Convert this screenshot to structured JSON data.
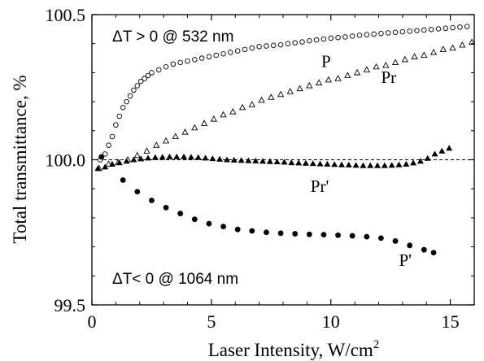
{
  "chart_data": {
    "type": "scatter",
    "xlabel": "Laser Intensity, W/cm",
    "xlabel_sup": "2",
    "ylabel": "Total transmittance, %",
    "xlim": [
      0,
      16
    ],
    "ylim": [
      99.5,
      100.5
    ],
    "x_ticks": [
      0,
      5,
      10,
      15
    ],
    "x_tick_labels": [
      "0",
      "5",
      "10",
      "15"
    ],
    "y_ticks": [
      99.5,
      100.0,
      100.5
    ],
    "y_tick_labels": [
      "99.5",
      "100.0",
      "100.5"
    ],
    "reference_line": 100.0,
    "annotations": [
      "ΔT > 0 @ 532 nm",
      "ΔT< 0 @ 1064 nm"
    ],
    "series": [
      {
        "name": "P",
        "marker": "open-circle",
        "points": [
          [
            0.35,
            100.0
          ],
          [
            0.55,
            100.02
          ],
          [
            0.7,
            100.05
          ],
          [
            0.85,
            100.08
          ],
          [
            1.0,
            100.12
          ],
          [
            1.15,
            100.15
          ],
          [
            1.3,
            100.18
          ],
          [
            1.45,
            100.2
          ],
          [
            1.6,
            100.22
          ],
          [
            1.75,
            100.24
          ],
          [
            1.9,
            100.255
          ],
          [
            2.05,
            100.27
          ],
          [
            2.2,
            100.28
          ],
          [
            2.35,
            100.29
          ],
          [
            2.5,
            100.3
          ],
          [
            2.8,
            100.31
          ],
          [
            3.1,
            100.32
          ],
          [
            3.4,
            100.33
          ],
          [
            3.7,
            100.335
          ],
          [
            4.0,
            100.34
          ],
          [
            4.3,
            100.345
          ],
          [
            4.6,
            100.35
          ],
          [
            4.9,
            100.355
          ],
          [
            5.2,
            100.36
          ],
          [
            5.5,
            100.365
          ],
          [
            5.8,
            100.37
          ],
          [
            6.1,
            100.375
          ],
          [
            6.4,
            100.38
          ],
          [
            6.7,
            100.385
          ],
          [
            7.0,
            100.39
          ],
          [
            7.3,
            100.392
          ],
          [
            7.6,
            100.394
          ],
          [
            7.9,
            100.396
          ],
          [
            8.2,
            100.4
          ],
          [
            8.5,
            100.403
          ],
          [
            8.8,
            100.406
          ],
          [
            9.1,
            100.41
          ],
          [
            9.4,
            100.413
          ],
          [
            9.7,
            100.416
          ],
          [
            10.0,
            100.419
          ],
          [
            10.3,
            100.421
          ],
          [
            10.6,
            100.423
          ],
          [
            10.9,
            100.426
          ],
          [
            11.2,
            100.429
          ],
          [
            11.5,
            100.431
          ],
          [
            11.8,
            100.433
          ],
          [
            12.1,
            100.435
          ],
          [
            12.4,
            100.437
          ],
          [
            12.7,
            100.439
          ],
          [
            13.0,
            100.441
          ],
          [
            13.3,
            100.443
          ],
          [
            13.6,
            100.445
          ],
          [
            13.9,
            100.447
          ],
          [
            14.2,
            100.449
          ],
          [
            14.5,
            100.451
          ],
          [
            14.8,
            100.453
          ],
          [
            15.1,
            100.455
          ],
          [
            15.4,
            100.457
          ],
          [
            15.7,
            100.459
          ]
        ]
      },
      {
        "name": "Pr",
        "marker": "open-triangle",
        "points": [
          [
            0.3,
            99.97
          ],
          [
            0.7,
            99.985
          ],
          [
            1.1,
            99.99
          ],
          [
            1.5,
            100.0
          ],
          [
            1.9,
            100.015
          ],
          [
            2.3,
            100.03
          ],
          [
            2.7,
            100.05
          ],
          [
            3.1,
            100.065
          ],
          [
            3.5,
            100.08
          ],
          [
            3.9,
            100.095
          ],
          [
            4.3,
            100.11
          ],
          [
            4.7,
            100.125
          ],
          [
            5.1,
            100.14
          ],
          [
            5.5,
            100.155
          ],
          [
            5.9,
            100.165
          ],
          [
            6.3,
            100.18
          ],
          [
            6.7,
            100.19
          ],
          [
            7.1,
            100.205
          ],
          [
            7.5,
            100.215
          ],
          [
            7.9,
            100.225
          ],
          [
            8.3,
            100.235
          ],
          [
            8.7,
            100.245
          ],
          [
            9.1,
            100.255
          ],
          [
            9.5,
            100.265
          ],
          [
            9.9,
            100.275
          ],
          [
            10.3,
            100.28
          ],
          [
            10.7,
            100.29
          ],
          [
            11.1,
            100.3
          ],
          [
            11.5,
            100.31
          ],
          [
            11.9,
            100.32
          ],
          [
            12.3,
            100.325
          ],
          [
            12.7,
            100.335
          ],
          [
            13.1,
            100.345
          ],
          [
            13.5,
            100.355
          ],
          [
            13.9,
            100.36
          ],
          [
            14.3,
            100.37
          ],
          [
            14.7,
            100.38
          ],
          [
            15.1,
            100.385
          ],
          [
            15.5,
            100.395
          ],
          [
            15.9,
            100.405
          ]
        ]
      },
      {
        "name": "Pr'",
        "marker": "filled-triangle",
        "points": [
          [
            0.25,
            99.97
          ],
          [
            0.55,
            99.975
          ],
          [
            0.85,
            99.985
          ],
          [
            1.15,
            99.99
          ],
          [
            1.45,
            99.995
          ],
          [
            1.75,
            100.0
          ],
          [
            2.05,
            100.003
          ],
          [
            2.35,
            100.006
          ],
          [
            2.65,
            100.008
          ],
          [
            2.95,
            100.009
          ],
          [
            3.25,
            100.01
          ],
          [
            3.55,
            100.01
          ],
          [
            3.85,
            100.01
          ],
          [
            4.15,
            100.009
          ],
          [
            4.45,
            100.008
          ],
          [
            4.75,
            100.006
          ],
          [
            5.05,
            100.004
          ],
          [
            5.35,
            100.002
          ],
          [
            5.65,
            100.0
          ],
          [
            5.95,
            99.999
          ],
          [
            6.25,
            99.998
          ],
          [
            6.55,
            99.997
          ],
          [
            6.85,
            99.996
          ],
          [
            7.15,
            99.995
          ],
          [
            7.45,
            99.994
          ],
          [
            7.75,
            99.993
          ],
          [
            8.05,
            99.992
          ],
          [
            8.35,
            99.99
          ],
          [
            8.65,
            99.989
          ],
          [
            8.95,
            99.988
          ],
          [
            9.25,
            99.987
          ],
          [
            9.55,
            99.986
          ],
          [
            9.85,
            99.985
          ],
          [
            10.15,
            99.984
          ],
          [
            10.45,
            99.983
          ],
          [
            10.75,
            99.982
          ],
          [
            11.05,
            99.981
          ],
          [
            11.35,
            99.98
          ],
          [
            11.65,
            99.98
          ],
          [
            11.95,
            99.98
          ],
          [
            12.25,
            99.98
          ],
          [
            12.55,
            99.981
          ],
          [
            12.85,
            99.983
          ],
          [
            13.15,
            99.985
          ],
          [
            13.45,
            99.989
          ],
          [
            13.75,
            99.995
          ],
          [
            14.05,
            100.005
          ],
          [
            14.35,
            100.02
          ],
          [
            14.65,
            100.03
          ],
          [
            14.95,
            100.04
          ]
        ]
      },
      {
        "name": "P'",
        "marker": "filled-circle",
        "points": [
          [
            0.4,
            100.01
          ],
          [
            1.3,
            99.93
          ],
          [
            1.9,
            99.89
          ],
          [
            2.5,
            99.86
          ],
          [
            3.1,
            99.835
          ],
          [
            3.7,
            99.815
          ],
          [
            4.3,
            99.795
          ],
          [
            4.9,
            99.78
          ],
          [
            5.5,
            99.77
          ],
          [
            6.1,
            99.76
          ],
          [
            6.7,
            99.755
          ],
          [
            7.3,
            99.75
          ],
          [
            7.9,
            99.747
          ],
          [
            8.5,
            99.745
          ],
          [
            9.1,
            99.743
          ],
          [
            9.7,
            99.742
          ],
          [
            10.3,
            99.74
          ],
          [
            10.9,
            99.738
          ],
          [
            11.5,
            99.735
          ],
          [
            12.1,
            99.73
          ],
          [
            12.7,
            99.72
          ],
          [
            13.3,
            99.705
          ],
          [
            13.9,
            99.69
          ],
          [
            14.3,
            99.68
          ]
        ]
      }
    ],
    "series_labels": [
      {
        "text": "P",
        "at": [
          9.6,
          100.32
        ]
      },
      {
        "text": "Pr",
        "at": [
          12.1,
          100.265
        ]
      },
      {
        "text": "Pr'",
        "at": [
          9.15,
          99.89
        ]
      },
      {
        "text": "P'",
        "at": [
          12.85,
          99.635
        ]
      }
    ],
    "grid": false,
    "legend": "none"
  }
}
